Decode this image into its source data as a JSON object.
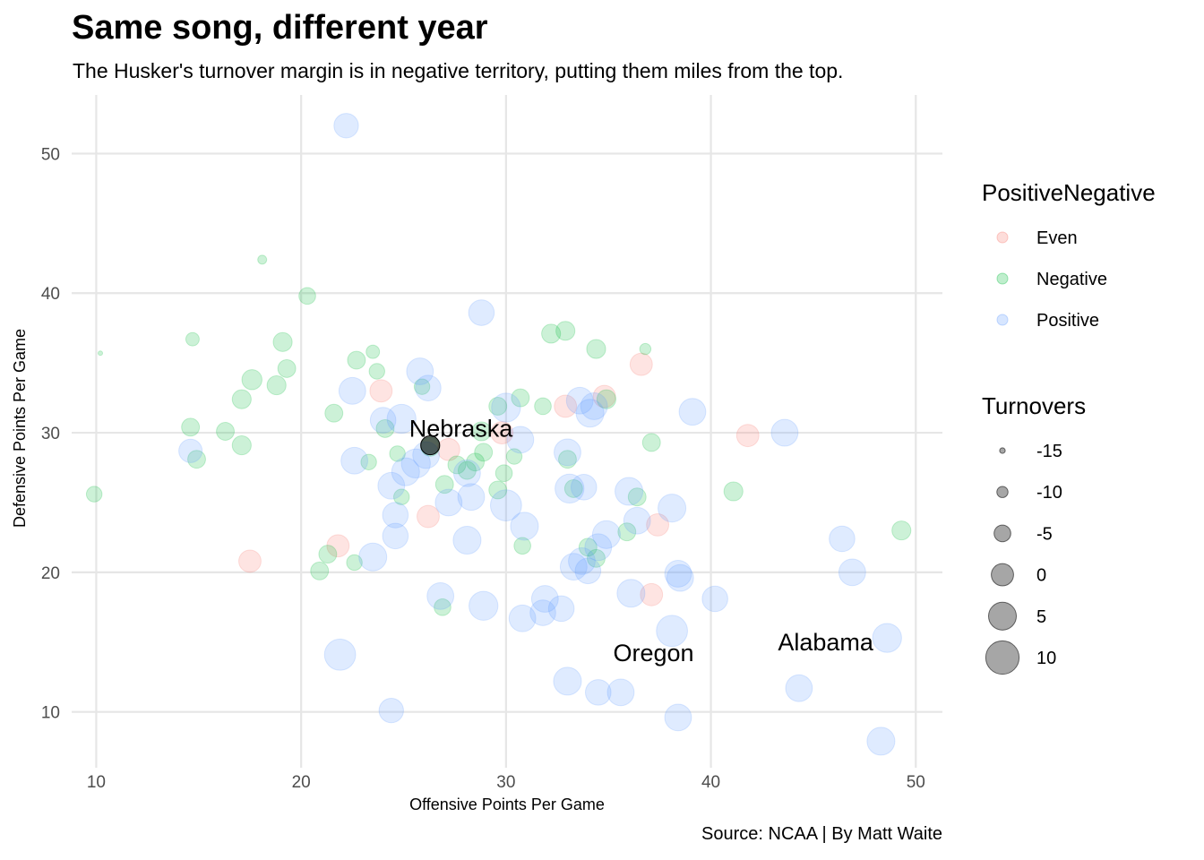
{
  "chart_data": {
    "type": "scatter",
    "title": "Same song, different year",
    "subtitle": "The Husker's turnover margin is in negative territory, putting them miles from the top.",
    "caption": "Source: NCAA | By Matt Waite",
    "xlabel": "Offensive Points Per Game",
    "ylabel": "Defensive Points Per Game",
    "xlim": [
      8.8,
      51.3
    ],
    "ylim": [
      6,
      54.2
    ],
    "x_ticks": [
      10,
      20,
      30,
      40,
      50
    ],
    "y_ticks": [
      10,
      20,
      30,
      40,
      50
    ],
    "grid": true,
    "legend_position": "right",
    "color_legend": {
      "title": "PositiveNegative",
      "entries": [
        {
          "name": "Even",
          "color": "#F8766D"
        },
        {
          "name": "Negative",
          "color": "#00BA38"
        },
        {
          "name": "Positive",
          "color": "#619CFF"
        }
      ]
    },
    "size_legend": {
      "title": "Turnovers",
      "entries": [
        -15,
        -10,
        -5,
        0,
        5,
        10
      ]
    },
    "highlight": {
      "name": "Nebraska",
      "x": 26.3,
      "y": 29.1,
      "size": -3,
      "color": "#000000"
    },
    "annotations": [
      {
        "text": "Nebraska",
        "x": 27.8,
        "y": 30.3
      },
      {
        "text": "Oregon",
        "x": 37.2,
        "y": 14.2
      },
      {
        "text": "Alabama",
        "x": 45.6,
        "y": 15.0
      }
    ],
    "series": [
      {
        "name": "Even",
        "color": "#F8766D",
        "points": [
          [
            17.5,
            20.8,
            0
          ],
          [
            21.8,
            21.9,
            0
          ],
          [
            23.9,
            33.0,
            0
          ],
          [
            26.2,
            24.0,
            0
          ],
          [
            27.2,
            28.8,
            0
          ],
          [
            32.9,
            31.9,
            0
          ],
          [
            34.8,
            32.6,
            0
          ],
          [
            36.6,
            34.9,
            0
          ],
          [
            37.1,
            18.4,
            0
          ],
          [
            37.4,
            23.4,
            0
          ],
          [
            41.8,
            29.8,
            0
          ],
          [
            29.8,
            30.0,
            0
          ]
        ]
      },
      {
        "name": "Negative",
        "color": "#00BA38",
        "points": [
          [
            9.9,
            25.6,
            -6
          ],
          [
            10.2,
            35.7,
            -16
          ],
          [
            14.6,
            30.4,
            -4
          ],
          [
            14.7,
            36.7,
            -8
          ],
          [
            14.9,
            28.1,
            -4
          ],
          [
            16.3,
            30.1,
            -4
          ],
          [
            17.1,
            32.4,
            -3
          ],
          [
            17.1,
            29.1,
            -3
          ],
          [
            17.6,
            33.8,
            -2
          ],
          [
            18.1,
            42.4,
            -12
          ],
          [
            18.8,
            33.4,
            -3
          ],
          [
            19.1,
            36.5,
            -3
          ],
          [
            19.3,
            34.6,
            -4
          ],
          [
            20.3,
            39.8,
            -5
          ],
          [
            20.9,
            20.1,
            -4
          ],
          [
            21.3,
            21.3,
            -4
          ],
          [
            21.6,
            31.4,
            -4
          ],
          [
            22.6,
            20.7,
            -6
          ],
          [
            22.7,
            35.2,
            -4
          ],
          [
            23.3,
            27.9,
            -6
          ],
          [
            23.5,
            35.8,
            -8
          ],
          [
            23.7,
            34.4,
            -6
          ],
          [
            24.1,
            30.3,
            -4
          ],
          [
            24.7,
            28.5,
            -6
          ],
          [
            24.9,
            25.4,
            -6
          ],
          [
            25.9,
            33.3,
            -6
          ],
          [
            26.3,
            29.0,
            -3
          ],
          [
            26.9,
            17.5,
            -5
          ],
          [
            27.0,
            26.3,
            -4
          ],
          [
            27.6,
            27.7,
            -4
          ],
          [
            28.1,
            27.3,
            -4
          ],
          [
            28.5,
            27.9,
            -4
          ],
          [
            28.8,
            30.1,
            -3
          ],
          [
            28.9,
            28.6,
            -4
          ],
          [
            29.6,
            31.9,
            -4
          ],
          [
            29.6,
            25.9,
            -4
          ],
          [
            29.9,
            27.1,
            -5
          ],
          [
            30.4,
            28.3,
            -6
          ],
          [
            30.7,
            32.5,
            -4
          ],
          [
            30.8,
            21.9,
            -5
          ],
          [
            31.8,
            31.9,
            -5
          ],
          [
            32.2,
            37.1,
            -3
          ],
          [
            32.9,
            37.3,
            -3
          ],
          [
            33.0,
            28.1,
            -4
          ],
          [
            33.3,
            26.0,
            -4
          ],
          [
            34.0,
            21.8,
            -4
          ],
          [
            34.4,
            21.0,
            -4
          ],
          [
            34.4,
            36.0,
            -3
          ],
          [
            34.9,
            32.4,
            -3
          ],
          [
            35.9,
            22.9,
            -4
          ],
          [
            36.4,
            25.4,
            -4
          ],
          [
            36.8,
            36.0,
            -10
          ],
          [
            37.1,
            29.3,
            -4
          ],
          [
            41.1,
            25.8,
            -3
          ],
          [
            49.3,
            23.0,
            -3
          ]
        ]
      },
      {
        "name": "Positive",
        "color": "#619CFF",
        "points": [
          [
            14.6,
            28.7,
            1
          ],
          [
            21.9,
            14.1,
            8
          ],
          [
            22.2,
            52.0,
            2
          ],
          [
            22.5,
            33.0,
            4
          ],
          [
            22.6,
            28.0,
            4
          ],
          [
            23.5,
            21.1,
            5
          ],
          [
            24.0,
            30.9,
            3
          ],
          [
            24.4,
            10.1,
            2
          ],
          [
            24.4,
            26.2,
            4
          ],
          [
            24.6,
            22.6,
            3
          ],
          [
            24.6,
            24.1,
            3
          ],
          [
            24.9,
            31.0,
            6
          ],
          [
            25.1,
            27.2,
            5
          ],
          [
            25.6,
            27.8,
            6
          ],
          [
            25.8,
            34.4,
            4
          ],
          [
            26.1,
            28.4,
            4
          ],
          [
            26.2,
            33.2,
            3
          ],
          [
            26.8,
            18.3,
            4
          ],
          [
            27.2,
            25.0,
            4
          ],
          [
            28.1,
            22.3,
            5
          ],
          [
            28.1,
            27.1,
            4
          ],
          [
            28.3,
            25.4,
            4
          ],
          [
            28.8,
            38.6,
            3
          ],
          [
            28.9,
            17.6,
            6
          ],
          [
            30.0,
            24.8,
            8
          ],
          [
            30.0,
            31.8,
            6
          ],
          [
            30.7,
            29.5,
            4
          ],
          [
            30.8,
            16.7,
            4
          ],
          [
            30.9,
            23.3,
            5
          ],
          [
            31.8,
            17.1,
            3
          ],
          [
            31.9,
            18.1,
            4
          ],
          [
            32.7,
            17.4,
            3
          ],
          [
            33.0,
            12.2,
            5
          ],
          [
            33.0,
            28.6,
            4
          ],
          [
            33.1,
            26.0,
            6
          ],
          [
            33.3,
            20.4,
            4
          ],
          [
            33.6,
            32.3,
            4
          ],
          [
            33.7,
            20.8,
            4
          ],
          [
            33.8,
            26.1,
            3
          ],
          [
            34.0,
            20.1,
            3
          ],
          [
            34.1,
            31.4,
            5
          ],
          [
            34.3,
            31.9,
            4
          ],
          [
            34.5,
            11.4,
            3
          ],
          [
            34.5,
            21.8,
            4
          ],
          [
            34.9,
            22.7,
            5
          ],
          [
            35.6,
            11.4,
            4
          ],
          [
            36.0,
            25.8,
            5
          ],
          [
            36.1,
            18.5,
            5
          ],
          [
            36.4,
            23.7,
            4
          ],
          [
            38.1,
            24.6,
            5
          ],
          [
            38.1,
            15.8,
            8
          ],
          [
            38.4,
            9.6,
            4
          ],
          [
            38.4,
            19.9,
            4
          ],
          [
            38.5,
            19.6,
            4
          ],
          [
            39.1,
            31.5,
            4
          ],
          [
            40.2,
            18.1,
            3
          ],
          [
            43.6,
            30.0,
            4
          ],
          [
            44.3,
            11.7,
            4
          ],
          [
            46.4,
            22.4,
            3
          ],
          [
            46.9,
            20.0,
            4
          ],
          [
            48.3,
            7.9,
            5
          ],
          [
            48.6,
            15.3,
            6
          ]
        ]
      }
    ]
  }
}
